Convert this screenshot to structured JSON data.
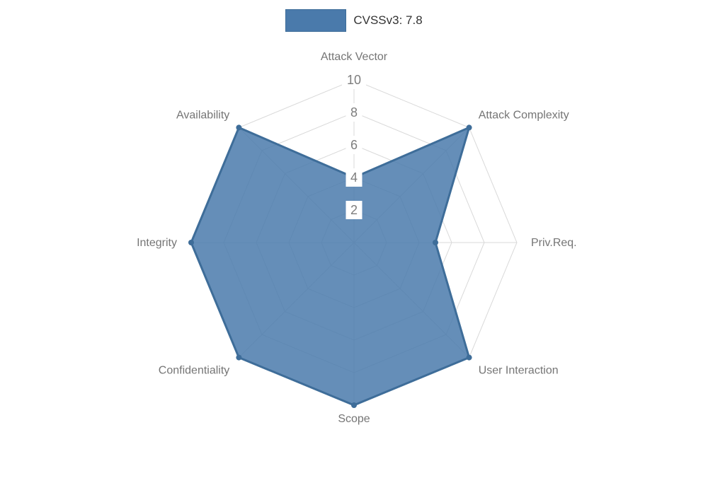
{
  "legend": {
    "label": "CVSSv3: 7.8"
  },
  "chart_data": {
    "type": "radar",
    "title": "CVSSv3: 7.8",
    "categories": [
      "Attack Vector",
      "Attack Complexity",
      "Priv.Req.",
      "User Interaction",
      "Scope",
      "Confidentiality",
      "Integrity",
      "Availability"
    ],
    "series": [
      {
        "name": "CVSSv3: 7.8",
        "values": [
          4,
          10,
          5,
          10,
          10,
          10,
          10,
          10
        ]
      }
    ],
    "ticks": [
      2,
      4,
      6,
      8,
      10
    ],
    "rlim": [
      0,
      10
    ],
    "grid": true,
    "legend_position": "top",
    "colors": {
      "fill": "#4a7aab",
      "fill_opacity": 0.85,
      "line": "#3e6d99",
      "grid": "#d9d9d9",
      "tick_label": "#7d7d7d",
      "axis_label": "#757575",
      "legend_text": "#333333",
      "tick_backdrop": "#ffffff",
      "background": "#ffffff"
    }
  }
}
